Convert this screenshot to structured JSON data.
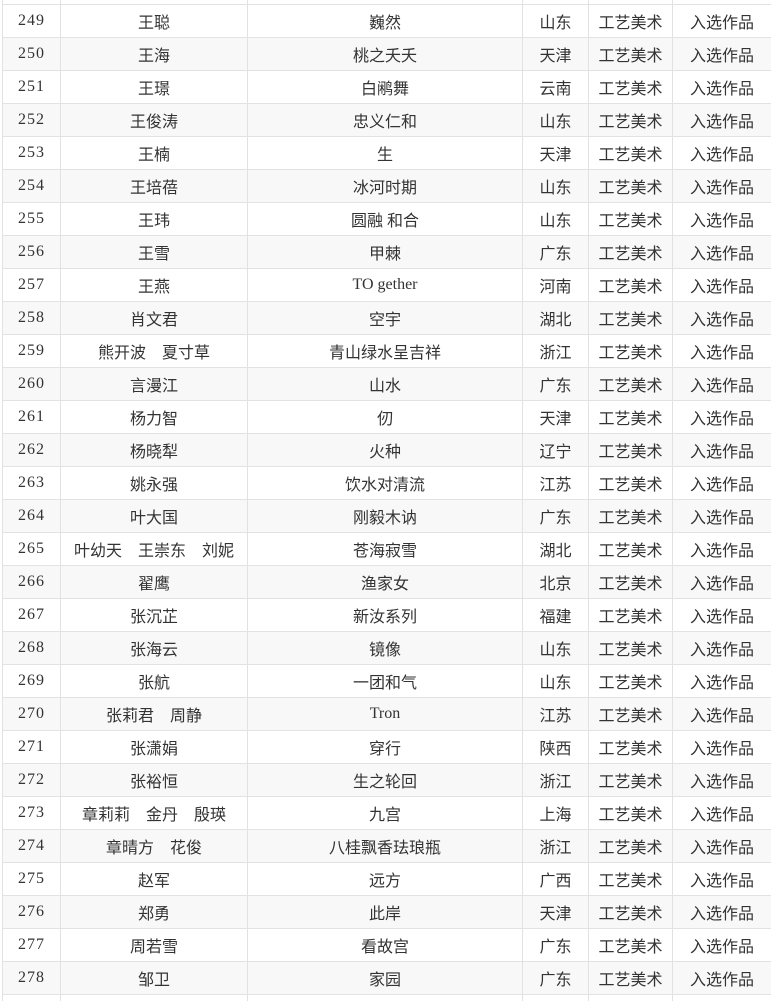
{
  "table": {
    "description_colors": {
      "row_stripe": "#f8f8f8",
      "grid_border": "#e2e2e2",
      "text": "#333333",
      "background": "#ffffff"
    },
    "category_label": "工艺美术",
    "status_label": "入选作品",
    "rows": [
      {
        "number": "249",
        "author": "王聪",
        "title": "巍然",
        "province": "山东",
        "category": "工艺美术",
        "status": "入选作品"
      },
      {
        "number": "250",
        "author": "王海",
        "title": "桃之夭夭",
        "province": "天津",
        "category": "工艺美术",
        "status": "入选作品"
      },
      {
        "number": "251",
        "author": "王璟",
        "title": "白鹇舞",
        "province": "云南",
        "category": "工艺美术",
        "status": "入选作品"
      },
      {
        "number": "252",
        "author": "王俊涛",
        "title": "忠义仁和",
        "province": "山东",
        "category": "工艺美术",
        "status": "入选作品"
      },
      {
        "number": "253",
        "author": "王楠",
        "title": "生",
        "province": "天津",
        "category": "工艺美术",
        "status": "入选作品"
      },
      {
        "number": "254",
        "author": "王培蓓",
        "title": "冰河时期",
        "province": "山东",
        "category": "工艺美术",
        "status": "入选作品"
      },
      {
        "number": "255",
        "author": "王玮",
        "title": "圆融 和合",
        "province": "山东",
        "category": "工艺美术",
        "status": "入选作品"
      },
      {
        "number": "256",
        "author": "王雪",
        "title": "甲棘",
        "province": "广东",
        "category": "工艺美术",
        "status": "入选作品"
      },
      {
        "number": "257",
        "author": "王燕",
        "title": "TO gether",
        "province": "河南",
        "category": "工艺美术",
        "status": "入选作品"
      },
      {
        "number": "258",
        "author": "肖文君",
        "title": "空宇",
        "province": "湖北",
        "category": "工艺美术",
        "status": "入选作品"
      },
      {
        "number": "259",
        "author": "熊开波　夏寸草",
        "title": "青山绿水呈吉祥",
        "province": "浙江",
        "category": "工艺美术",
        "status": "入选作品"
      },
      {
        "number": "260",
        "author": "言漫江",
        "title": "山水",
        "province": "广东",
        "category": "工艺美术",
        "status": "入选作品"
      },
      {
        "number": "261",
        "author": "杨力智",
        "title": "仞",
        "province": "天津",
        "category": "工艺美术",
        "status": "入选作品"
      },
      {
        "number": "262",
        "author": "杨晓犁",
        "title": "火种",
        "province": "辽宁",
        "category": "工艺美术",
        "status": "入选作品"
      },
      {
        "number": "263",
        "author": "姚永强",
        "title": "饮水对清流",
        "province": "江苏",
        "category": "工艺美术",
        "status": "入选作品"
      },
      {
        "number": "264",
        "author": "叶大国",
        "title": "刚毅木讷",
        "province": "广东",
        "category": "工艺美术",
        "status": "入选作品"
      },
      {
        "number": "265",
        "author": "叶幼天　王崇东　刘妮",
        "title": "苍海寂雪",
        "province": "湖北",
        "category": "工艺美术",
        "status": "入选作品"
      },
      {
        "number": "266",
        "author": "翟鹰",
        "title": "渔家女",
        "province": "北京",
        "category": "工艺美术",
        "status": "入选作品"
      },
      {
        "number": "267",
        "author": "张沉芷",
        "title": "新汝系列",
        "province": "福建",
        "category": "工艺美术",
        "status": "入选作品"
      },
      {
        "number": "268",
        "author": "张海云",
        "title": "镜像",
        "province": "山东",
        "category": "工艺美术",
        "status": "入选作品"
      },
      {
        "number": "269",
        "author": "张航",
        "title": "一团和气",
        "province": "山东",
        "category": "工艺美术",
        "status": "入选作品"
      },
      {
        "number": "270",
        "author": "张莉君　周静",
        "title": "Tron",
        "province": "江苏",
        "category": "工艺美术",
        "status": "入选作品"
      },
      {
        "number": "271",
        "author": "张潇娟",
        "title": "穿行",
        "province": "陕西",
        "category": "工艺美术",
        "status": "入选作品"
      },
      {
        "number": "272",
        "author": "张裕恒",
        "title": "生之轮回",
        "province": "浙江",
        "category": "工艺美术",
        "status": "入选作品"
      },
      {
        "number": "273",
        "author": "章莉莉　金丹　殷瑛",
        "title": "九宫",
        "province": "上海",
        "category": "工艺美术",
        "status": "入选作品"
      },
      {
        "number": "274",
        "author": "章晴方　花俊",
        "title": "八桂飘香珐琅瓶",
        "province": "浙江",
        "category": "工艺美术",
        "status": "入选作品"
      },
      {
        "number": "275",
        "author": "赵军",
        "title": "远方",
        "province": "广西",
        "category": "工艺美术",
        "status": "入选作品"
      },
      {
        "number": "276",
        "author": "郑勇",
        "title": "此岸",
        "province": "天津",
        "category": "工艺美术",
        "status": "入选作品"
      },
      {
        "number": "277",
        "author": "周若雪",
        "title": "看故宫",
        "province": "广东",
        "category": "工艺美术",
        "status": "入选作品"
      },
      {
        "number": "278",
        "author": "邹卫",
        "title": "家园",
        "province": "广东",
        "category": "工艺美术",
        "status": "入选作品"
      }
    ]
  }
}
